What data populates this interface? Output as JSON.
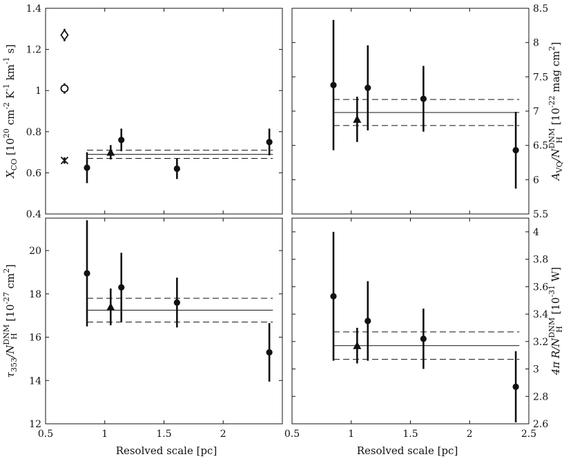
{
  "figure": {
    "xlabel": "Resolved scale [pc]"
  },
  "chart_data": [
    {
      "type": "scatter",
      "panel": "top-left",
      "ylabel": {
        "main": "X",
        "sub": "CO",
        "units": " [10",
        "exp": "20",
        "units2": " cm",
        "e1": "-2",
        "u3": " K",
        "e2": "-1",
        "u4": " km",
        "e3": "-1",
        "u5": " s]"
      },
      "xlim": [
        0.5,
        2.5
      ],
      "ylim": [
        0.4,
        1.4
      ],
      "y_axis_side": "left",
      "x_tick_labels_visible": false,
      "xticks": [
        0.5,
        1,
        1.5,
        2,
        2.5
      ],
      "yticks": [
        0.4,
        0.6,
        0.8,
        1,
        1.2,
        1.4
      ],
      "ytick_labels": [
        "0.4",
        "0.6",
        "0.8",
        "1",
        "1.2",
        "1.4"
      ],
      "points": [
        {
          "x": 0.85,
          "y": 0.625,
          "err_low": 0.075,
          "err_high": 0.075,
          "marker": "circle"
        },
        {
          "x": 1.14,
          "y": 0.76,
          "err_low": 0.055,
          "err_high": 0.055,
          "marker": "circle"
        },
        {
          "x": 1.61,
          "y": 0.62,
          "err_low": 0.05,
          "err_high": 0.05,
          "marker": "circle"
        },
        {
          "x": 2.39,
          "y": 0.75,
          "err_low": 0.065,
          "err_high": 0.065,
          "marker": "circle"
        },
        {
          "x": 1.05,
          "y": 0.7,
          "err_low": 0.035,
          "err_high": 0.035,
          "marker": "triangle"
        }
      ],
      "extra_markers": [
        {
          "x": 0.66,
          "y": 1.27,
          "err_low": 0.03,
          "err_high": 0.03,
          "marker": "diamond"
        },
        {
          "x": 0.66,
          "y": 1.01,
          "err_low": 0.025,
          "err_high": 0.025,
          "marker": "circle-open"
        },
        {
          "x": 0.66,
          "y": 0.66,
          "err_low": 0.015,
          "err_high": 0.015,
          "marker": "x"
        }
      ],
      "mean": 0.69,
      "band": [
        0.67,
        0.71
      ],
      "line_x": [
        0.85,
        2.42
      ]
    },
    {
      "type": "scatter",
      "panel": "top-right",
      "ylabel": {
        "main": "A",
        "sub": "VQ",
        "slash": "/N",
        "sup": "DNM",
        "sub2": "H",
        "units": " [10",
        "exp": "-22",
        "units2": " mag cm",
        "e1": "2",
        "u3": "]"
      },
      "xlim": [
        0.5,
        2.5
      ],
      "ylim": [
        5.5,
        8.5
      ],
      "y_axis_side": "right",
      "x_tick_labels_visible": false,
      "xticks": [
        0.5,
        1,
        1.5,
        2,
        2.5
      ],
      "yticks": [
        5.5,
        6,
        6.5,
        7,
        7.5,
        8,
        8.5
      ],
      "ytick_labels": [
        "5.5",
        "6",
        "6.5",
        "7",
        "7.5",
        "8",
        "8.5"
      ],
      "points": [
        {
          "x": 0.85,
          "y": 7.38,
          "err_low": 0.95,
          "err_high": 0.95,
          "marker": "circle"
        },
        {
          "x": 1.14,
          "y": 7.34,
          "err_low": 0.62,
          "err_high": 0.62,
          "marker": "circle"
        },
        {
          "x": 1.61,
          "y": 7.18,
          "err_low": 0.48,
          "err_high": 0.48,
          "marker": "circle"
        },
        {
          "x": 2.39,
          "y": 6.43,
          "err_low": 0.56,
          "err_high": 0.56,
          "marker": "circle"
        },
        {
          "x": 1.05,
          "y": 6.88,
          "err_low": 0.33,
          "err_high": 0.33,
          "marker": "triangle"
        }
      ],
      "extra_markers": [],
      "mean": 6.98,
      "band": [
        6.79,
        7.17
      ],
      "line_x": [
        0.85,
        2.42
      ]
    },
    {
      "type": "scatter",
      "panel": "bottom-left",
      "ylabel": {
        "main": "τ",
        "sub": "353",
        "slash": "/N",
        "sup": "DNM",
        "sub2": "H",
        "units": " [10",
        "exp": "-27",
        "units2": " cm",
        "e1": "2",
        "u3": "]"
      },
      "xlim": [
        0.5,
        2.5
      ],
      "ylim": [
        12,
        21.5
      ],
      "y_axis_side": "left",
      "x_tick_labels_visible": true,
      "xticks": [
        0.5,
        1,
        1.5,
        2
      ],
      "xtick_labels": [
        "0.5",
        "1",
        "1.5",
        "2"
      ],
      "yticks": [
        12,
        14,
        16,
        18,
        20
      ],
      "ytick_labels": [
        "12",
        "14",
        "16",
        "18",
        "20"
      ],
      "points": [
        {
          "x": 0.85,
          "y": 18.95,
          "err_low": 2.45,
          "err_high": 2.45,
          "marker": "circle"
        },
        {
          "x": 1.14,
          "y": 18.3,
          "err_low": 1.6,
          "err_high": 1.6,
          "marker": "circle"
        },
        {
          "x": 1.61,
          "y": 17.6,
          "err_low": 1.15,
          "err_high": 1.15,
          "marker": "circle"
        },
        {
          "x": 2.39,
          "y": 15.3,
          "err_low": 1.35,
          "err_high": 1.35,
          "marker": "circle"
        },
        {
          "x": 1.05,
          "y": 17.4,
          "err_low": 0.85,
          "err_high": 0.85,
          "marker": "triangle"
        }
      ],
      "extra_markers": [],
      "mean": 17.25,
      "band": [
        16.7,
        17.8
      ],
      "line_x": [
        0.85,
        2.42
      ]
    },
    {
      "type": "scatter",
      "panel": "bottom-right",
      "ylabel": {
        "main": "4π R/N",
        "sup": "DNM",
        "sub2": "H",
        "units": " [10",
        "exp": "-31",
        "units2": " W]"
      },
      "xlim": [
        0.5,
        2.5
      ],
      "ylim": [
        2.6,
        4.1
      ],
      "y_axis_side": "right",
      "x_tick_labels_visible": true,
      "xticks": [
        0.5,
        1,
        1.5,
        2,
        2.5
      ],
      "xtick_labels": [
        "0.5",
        "1",
        "1.5",
        "2",
        "2.5"
      ],
      "yticks": [
        2.6,
        2.8,
        3,
        3.2,
        3.4,
        3.6,
        3.8,
        4
      ],
      "ytick_labels": [
        "2.6",
        "2.8",
        "3",
        "3.2",
        "3.4",
        "3.6",
        "3.8",
        "4"
      ],
      "points": [
        {
          "x": 0.85,
          "y": 3.53,
          "err_low": 0.47,
          "err_high": 0.47,
          "marker": "circle"
        },
        {
          "x": 1.14,
          "y": 3.35,
          "err_low": 0.29,
          "err_high": 0.29,
          "marker": "circle"
        },
        {
          "x": 1.61,
          "y": 3.22,
          "err_low": 0.22,
          "err_high": 0.22,
          "marker": "circle"
        },
        {
          "x": 2.39,
          "y": 2.87,
          "err_low": 0.26,
          "err_high": 0.26,
          "marker": "circle"
        },
        {
          "x": 1.05,
          "y": 3.17,
          "err_low": 0.13,
          "err_high": 0.13,
          "marker": "triangle"
        }
      ],
      "extra_markers": [],
      "mean": 3.17,
      "band": [
        3.07,
        3.27
      ],
      "line_x": [
        0.85,
        2.42
      ]
    }
  ]
}
